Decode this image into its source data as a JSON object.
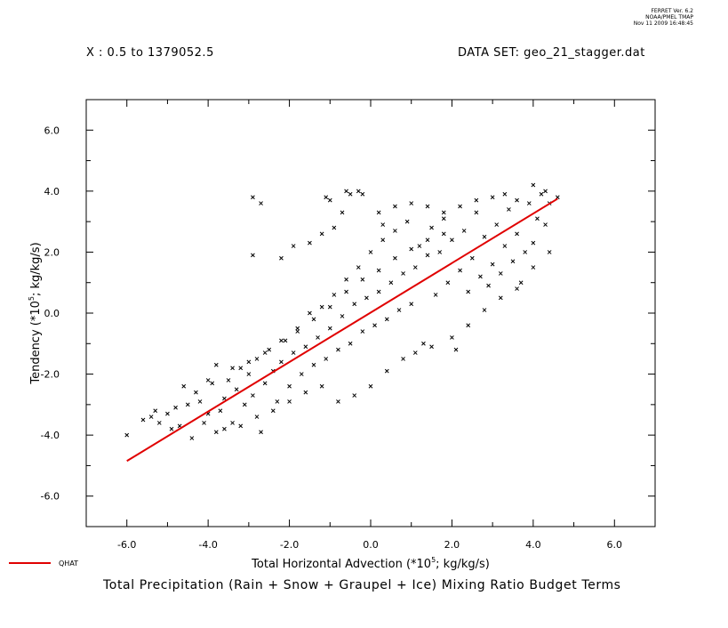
{
  "stamp": {
    "line1": "FERRET Ver. 6.2",
    "line2": "NOAA/PMEL TMAP",
    "line3": "Nov 11 2009 16:48:45"
  },
  "header": {
    "x_range": "X : 0.5 to 1379052.5",
    "dataset": "DATA SET: geo_21_stagger.dat"
  },
  "title": "Total Precipitation (Rain + Snow + Graupel + Ice) Mixing Ratio Budget Terms",
  "colors": {
    "points": "#000000",
    "fit_line": "#e00000",
    "frame": "#000000"
  },
  "chart_data": {
    "type": "scatter",
    "xlabel_main": "Total Horizontal Advection (*10",
    "xlabel_exp": "5",
    "xlabel_tail": "; kg/kg/s)",
    "ylabel_main": "Tendency (*10",
    "ylabel_exp": "5",
    "ylabel_tail": "; kg/kg/s)",
    "xlim": [
      -7,
      7
    ],
    "ylim": [
      -7,
      7
    ],
    "xticks": [
      -6,
      -4,
      -2,
      0,
      2,
      4,
      6
    ],
    "yticks": [
      -6,
      -4,
      -2,
      0,
      2,
      4,
      6
    ],
    "xtick_labels": [
      "-6.0",
      "-4.0",
      "-2.0",
      "0.0",
      "2.0",
      "4.0",
      "6.0"
    ],
    "ytick_labels": [
      "-6.0",
      "-4.0",
      "-2.0",
      "0.0",
      "2.0",
      "4.0",
      "6.0"
    ],
    "grid": false,
    "scatter_series": {
      "marker": "x",
      "points": [
        [
          -6.0,
          -4.0
        ],
        [
          -5.6,
          -3.5
        ],
        [
          -5.4,
          -3.4
        ],
        [
          -5.2,
          -3.6
        ],
        [
          -5.0,
          -3.3
        ],
        [
          -4.8,
          -3.1
        ],
        [
          -4.7,
          -3.7
        ],
        [
          -4.5,
          -3.0
        ],
        [
          -4.4,
          -4.1
        ],
        [
          -4.3,
          -2.6
        ],
        [
          -4.2,
          -2.9
        ],
        [
          -4.0,
          -3.3
        ],
        [
          -3.9,
          -2.3
        ],
        [
          -3.8,
          -3.9
        ],
        [
          -3.6,
          -2.8
        ],
        [
          -3.5,
          -2.2
        ],
        [
          -3.4,
          -3.6
        ],
        [
          -3.3,
          -2.5
        ],
        [
          -3.2,
          -1.8
        ],
        [
          -3.1,
          -3.0
        ],
        [
          -3.0,
          -2.0
        ],
        [
          -2.9,
          -2.7
        ],
        [
          -2.8,
          -1.5
        ],
        [
          -2.7,
          -3.9
        ],
        [
          -2.6,
          -2.3
        ],
        [
          -2.5,
          -1.2
        ],
        [
          -2.4,
          -1.9
        ],
        [
          -2.3,
          -2.9
        ],
        [
          -2.2,
          -1.6
        ],
        [
          -2.1,
          -0.9
        ],
        [
          -2.0,
          -2.4
        ],
        [
          -1.9,
          -1.3
        ],
        [
          -1.8,
          -0.6
        ],
        [
          -1.7,
          -2.0
        ],
        [
          -1.6,
          -1.1
        ],
        [
          -1.5,
          0.0
        ],
        [
          -1.4,
          -1.7
        ],
        [
          -1.3,
          -0.8
        ],
        [
          -1.2,
          0.2
        ],
        [
          -1.1,
          -1.5
        ],
        [
          -1.0,
          -0.5
        ],
        [
          -0.9,
          0.6
        ],
        [
          -0.8,
          -1.2
        ],
        [
          -0.7,
          -0.1
        ],
        [
          -0.6,
          1.1
        ],
        [
          -0.5,
          -1.0
        ],
        [
          -0.4,
          0.3
        ],
        [
          -0.3,
          1.5
        ],
        [
          -0.2,
          -0.6
        ],
        [
          -0.1,
          0.5
        ],
        [
          0.0,
          2.0
        ],
        [
          0.1,
          -0.4
        ],
        [
          0.2,
          0.7
        ],
        [
          0.3,
          2.4
        ],
        [
          0.4,
          -0.2
        ],
        [
          0.5,
          1.0
        ],
        [
          0.6,
          2.7
        ],
        [
          0.7,
          0.1
        ],
        [
          0.8,
          1.3
        ],
        [
          0.9,
          3.0
        ],
        [
          1.0,
          0.3
        ],
        [
          1.1,
          1.5
        ],
        [
          1.2,
          2.2
        ],
        [
          1.3,
          -1.0
        ],
        [
          1.4,
          1.9
        ],
        [
          1.5,
          2.8
        ],
        [
          1.6,
          0.6
        ],
        [
          1.7,
          2.0
        ],
        [
          1.8,
          3.1
        ],
        [
          1.9,
          1.0
        ],
        [
          2.0,
          2.4
        ],
        [
          2.1,
          -1.2
        ],
        [
          2.2,
          1.4
        ],
        [
          2.3,
          2.7
        ],
        [
          2.4,
          0.7
        ],
        [
          2.5,
          1.8
        ],
        [
          2.6,
          3.3
        ],
        [
          2.7,
          1.2
        ],
        [
          2.8,
          2.5
        ],
        [
          2.9,
          0.9
        ],
        [
          3.0,
          1.6
        ],
        [
          3.1,
          2.9
        ],
        [
          3.2,
          1.3
        ],
        [
          3.3,
          2.2
        ],
        [
          3.4,
          3.4
        ],
        [
          3.5,
          1.7
        ],
        [
          3.6,
          2.6
        ],
        [
          3.7,
          1.0
        ],
        [
          3.8,
          2.0
        ],
        [
          3.9,
          3.6
        ],
        [
          4.0,
          2.3
        ],
        [
          4.1,
          3.1
        ],
        [
          4.2,
          3.9
        ],
        [
          4.3,
          2.9
        ],
        [
          4.4,
          3.6
        ],
        [
          4.6,
          3.8
        ],
        [
          -1.1,
          3.8
        ],
        [
          -1.0,
          3.7
        ],
        [
          -0.6,
          4.0
        ],
        [
          -0.5,
          3.9
        ],
        [
          -0.3,
          4.0
        ],
        [
          -0.2,
          3.9
        ],
        [
          -2.9,
          3.8
        ],
        [
          -2.7,
          3.6
        ],
        [
          -2.9,
          1.9
        ],
        [
          -2.2,
          1.8
        ],
        [
          -1.9,
          2.2
        ],
        [
          -1.5,
          2.3
        ],
        [
          -1.2,
          2.6
        ],
        [
          -0.9,
          2.8
        ],
        [
          -0.7,
          3.3
        ],
        [
          0.2,
          3.3
        ],
        [
          0.3,
          2.9
        ],
        [
          0.6,
          3.5
        ],
        [
          1.0,
          3.6
        ],
        [
          1.4,
          3.5
        ],
        [
          1.8,
          3.3
        ],
        [
          2.2,
          3.5
        ],
        [
          2.6,
          3.7
        ],
        [
          3.0,
          3.8
        ],
        [
          3.3,
          3.9
        ],
        [
          3.6,
          3.7
        ],
        [
          4.0,
          4.2
        ],
        [
          4.3,
          4.0
        ],
        [
          -0.8,
          -2.9
        ],
        [
          -0.4,
          -2.7
        ],
        [
          0.0,
          -2.4
        ],
        [
          0.4,
          -1.9
        ],
        [
          0.8,
          -1.5
        ],
        [
          1.1,
          -1.3
        ],
        [
          1.5,
          -1.1
        ],
        [
          2.0,
          -0.8
        ],
        [
          2.4,
          -0.4
        ],
        [
          2.8,
          0.1
        ],
        [
          3.2,
          0.5
        ],
        [
          3.6,
          0.8
        ],
        [
          4.0,
          1.5
        ],
        [
          4.4,
          2.0
        ],
        [
          -3.6,
          -3.8
        ],
        [
          -3.2,
          -3.7
        ],
        [
          -2.8,
          -3.4
        ],
        [
          -2.4,
          -3.2
        ],
        [
          -2.0,
          -2.9
        ],
        [
          -1.6,
          -2.6
        ],
        [
          -1.2,
          -2.4
        ],
        [
          -3.4,
          -1.8
        ],
        [
          -3.0,
          -1.6
        ],
        [
          -2.6,
          -1.3
        ],
        [
          -2.2,
          -0.9
        ],
        [
          -1.8,
          -0.5
        ],
        [
          -1.4,
          -0.2
        ],
        [
          -1.0,
          0.2
        ],
        [
          -0.6,
          0.7
        ],
        [
          -0.2,
          1.1
        ],
        [
          0.2,
          1.4
        ],
        [
          0.6,
          1.8
        ],
        [
          1.0,
          2.1
        ],
        [
          1.4,
          2.4
        ],
        [
          1.8,
          2.6
        ],
        [
          -4.6,
          -2.4
        ],
        [
          -4.0,
          -2.2
        ],
        [
          -3.8,
          -1.7
        ],
        [
          -4.9,
          -3.8
        ],
        [
          -5.3,
          -3.2
        ],
        [
          -4.1,
          -3.6
        ],
        [
          -3.7,
          -3.2
        ]
      ]
    },
    "fit_series": {
      "name": "QHAT",
      "x": [
        -6.0,
        4.6
      ],
      "y": [
        -4.85,
        3.75
      ]
    }
  }
}
